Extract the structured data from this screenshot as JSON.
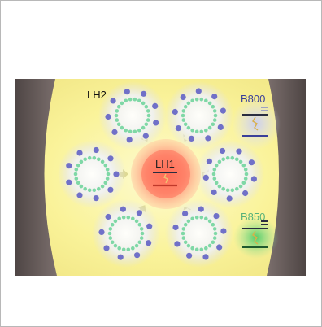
{
  "labels": {
    "lh2": "LH2",
    "lh1": "LH1",
    "b800": "B800",
    "b850": "B850"
  },
  "colors": {
    "background_glow": "#fbf6a0",
    "membrane": "#6b5f5d",
    "lh2_ring": "#7fd8a6",
    "lh2_pigment": "#7070c8",
    "lh1_core": "#ff7e6a",
    "b800_text": "#3a3f9a",
    "b850_text": "#58b27a",
    "b850_glow": "#4fd070",
    "level_line": "#2a2d40",
    "level_red": "#c0392b",
    "arrow": "#d8d48c"
  },
  "icons": {
    "energy_transfer": "zigzag-arrow-icon",
    "funnel": "funnel-arrow-icon"
  }
}
